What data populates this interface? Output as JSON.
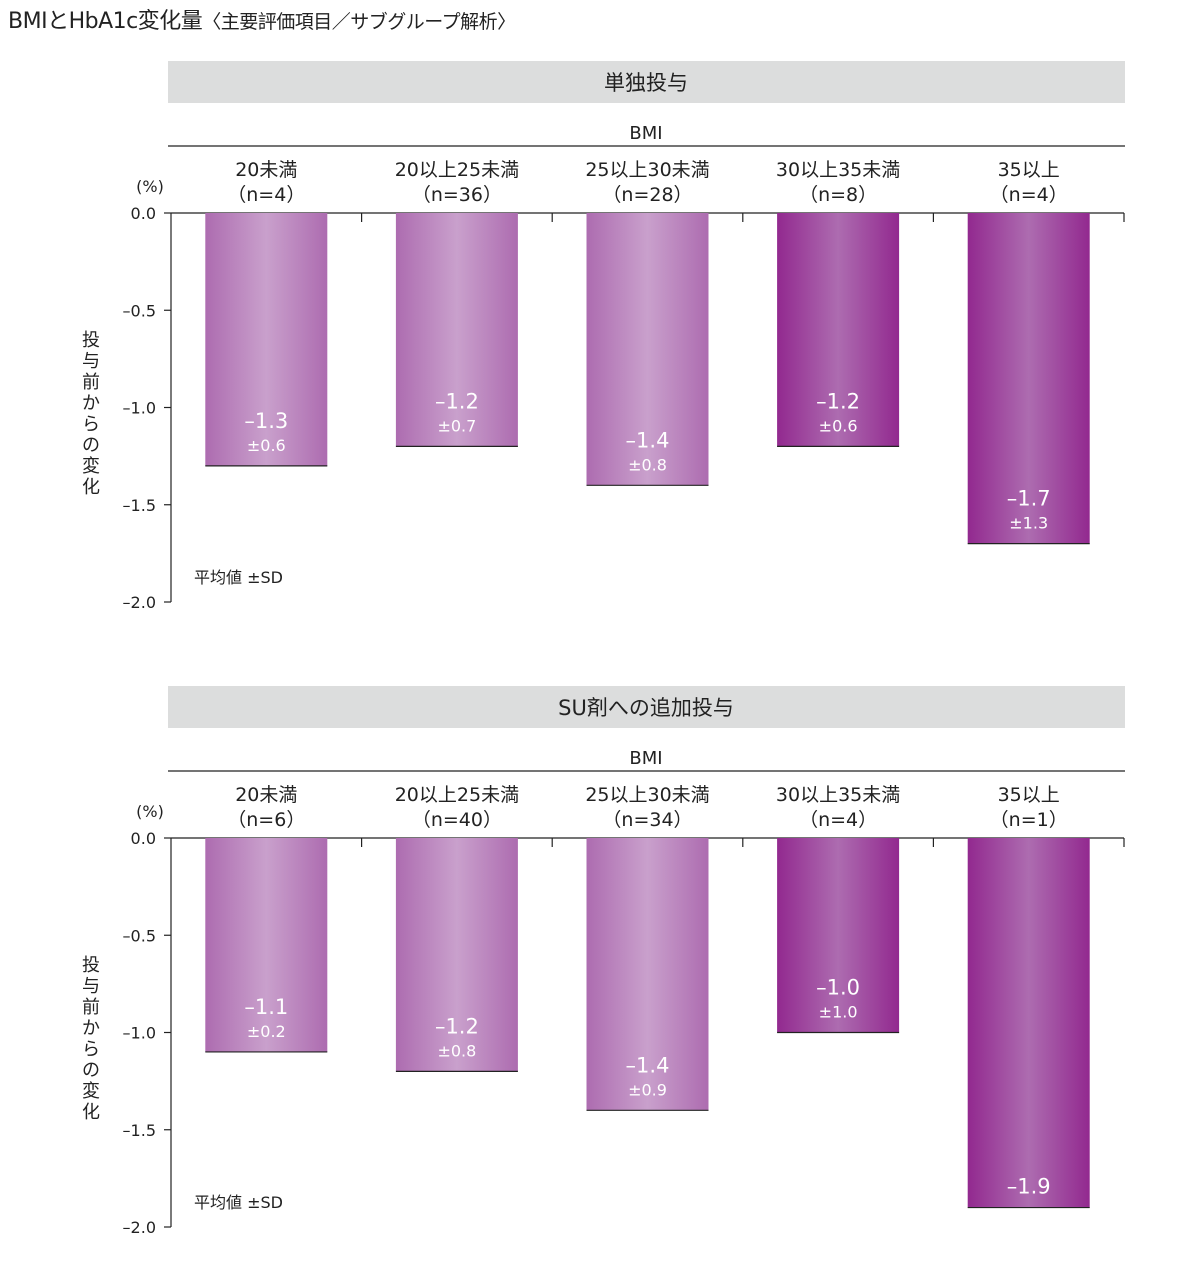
{
  "title": "BMIとHbA1c変化量",
  "subtitle": "〈主要評価項目／サブグループ解析〉",
  "colors": {
    "bar_light": "#c9a0cc",
    "bar_mid": "#ad6cb0",
    "bar_dark": "#92298f",
    "banner": "#dcdddd"
  },
  "chart_data": [
    {
      "type": "bar",
      "panel_title": "単独投与",
      "group_label": "BMI",
      "categories": [
        "20未満",
        "20以上25未満",
        "25以上30未満",
        "30以上35未満",
        "35以上"
      ],
      "n_labels": [
        "（n=4）",
        "（n=36）",
        "（n=28）",
        "（n=8）",
        "（n=4）"
      ],
      "values": [
        -1.3,
        -1.2,
        -1.4,
        -1.2,
        -1.7
      ],
      "value_labels": [
        "–1.3",
        "–1.2",
        "–1.4",
        "–1.2",
        "–1.7"
      ],
      "sd_labels": [
        "±0.6",
        "±0.7",
        "±0.8",
        "±0.6",
        "±1.3"
      ],
      "ylabel": "投与前からの変化",
      "unit": "(%)",
      "ylim": [
        -2.0,
        0.0
      ],
      "yticks": [
        0.0,
        -0.5,
        -1.0,
        -1.5,
        -2.0
      ],
      "ytick_labels": [
        "0.0",
        "–0.5",
        "–1.0",
        "–1.5",
        "–2.0"
      ],
      "note": "平均値 ±SD"
    },
    {
      "type": "bar",
      "panel_title": "SU剤への追加投与",
      "group_label": "BMI",
      "categories": [
        "20未満",
        "20以上25未満",
        "25以上30未満",
        "30以上35未満",
        "35以上"
      ],
      "n_labels": [
        "（n=6）",
        "（n=40）",
        "（n=34）",
        "（n=4）",
        "（n=1）"
      ],
      "values": [
        -1.1,
        -1.2,
        -1.4,
        -1.0,
        -1.9
      ],
      "value_labels": [
        "–1.1",
        "–1.2",
        "–1.4",
        "–1.0",
        "–1.9"
      ],
      "sd_labels": [
        "±0.2",
        "±0.8",
        "±0.9",
        "±1.0",
        ""
      ],
      "ylabel": "投与前からの変化",
      "unit": "(%)",
      "ylim": [
        -2.0,
        0.0
      ],
      "yticks": [
        0.0,
        -0.5,
        -1.0,
        -1.5,
        -2.0
      ],
      "ytick_labels": [
        "0.0",
        "–0.5",
        "–1.0",
        "–1.5",
        "–2.0"
      ],
      "note": "平均値 ±SD"
    }
  ]
}
